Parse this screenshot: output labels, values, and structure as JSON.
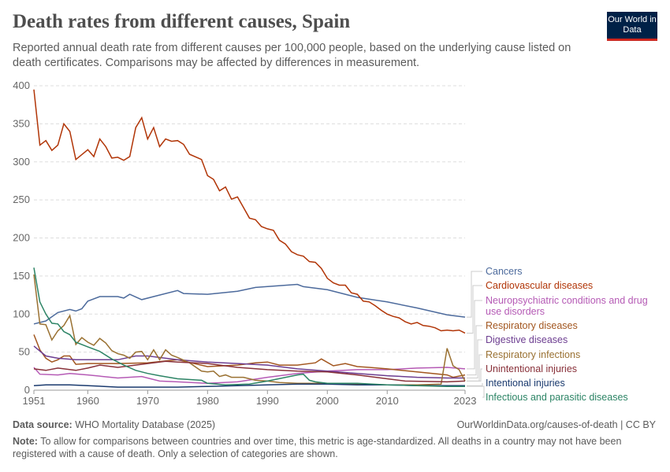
{
  "header": {
    "title": "Death rates from different causes, Spain",
    "subtitle": "Reported annual death rate from different causes per 100,000 people, based on the underlying cause listed on death certificates. Comparisons may be affected by differences in measurement.",
    "logo": "Our World in Data"
  },
  "footer": {
    "source_label": "Data source:",
    "source": "WHO Mortality Database (2025)",
    "url": "OurWorldinData.org/causes-of-death | CC BY",
    "note_label": "Note:",
    "note": "To allow for comparisons between countries and over time, this metric is age-standardized. All deaths in a country may not have been registered with a cause of death. Only a selection of categories are shown."
  },
  "chart_data": {
    "type": "line",
    "title": "",
    "xlabel": "",
    "ylabel": "",
    "xlim": [
      1951,
      2023
    ],
    "ylim": [
      0,
      400
    ],
    "y_ticks": [
      0,
      50,
      100,
      150,
      200,
      250,
      300,
      350,
      400
    ],
    "x_ticks": [
      1951,
      1960,
      1970,
      1980,
      1990,
      2000,
      2010,
      2023
    ],
    "grid": "horizontal dashed",
    "legend": "right, line-end labels",
    "series": [
      {
        "name": "Cancers",
        "color": "#4c6a9c",
        "x": [
          1951,
          1953,
          1955,
          1957,
          1958,
          1959,
          1960,
          1962,
          1965,
          1966,
          1967,
          1969,
          1971,
          1975,
          1976,
          1980,
          1985,
          1988,
          1995,
          1996,
          2000,
          2005,
          2010,
          2015,
          2020,
          2023
        ],
        "y": [
          87,
          91,
          102,
          106,
          104,
          107,
          117,
          123,
          123,
          121,
          126,
          119,
          123,
          131,
          127,
          126,
          130,
          135,
          139,
          136,
          132,
          122,
          116,
          108,
          99,
          96
        ]
      },
      {
        "name": "Cardiovascular diseases",
        "color": "#b13507",
        "x": [
          1951,
          1952,
          1953,
          1954,
          1955,
          1956,
          1957,
          1958,
          1960,
          1961,
          1962,
          1963,
          1964,
          1965,
          1966,
          1967,
          1968,
          1969,
          1970,
          1971,
          1972,
          1973,
          1974,
          1975,
          1976,
          1977,
          1979,
          1980,
          1981,
          1982,
          1983,
          1984,
          1985,
          1986,
          1987,
          1988,
          1989,
          1990,
          1991,
          1992,
          1993,
          1994,
          1995,
          1996,
          1997,
          1998,
          1999,
          2000,
          2001,
          2002,
          2003,
          2004,
          2005,
          2006,
          2007,
          2008,
          2009,
          2010,
          2011,
          2012,
          2013,
          2014,
          2015,
          2016,
          2017,
          2018,
          2019,
          2020,
          2021,
          2022,
          2023
        ],
        "y": [
          395,
          322,
          328,
          315,
          322,
          350,
          340,
          303,
          316,
          307,
          330,
          320,
          305,
          306,
          302,
          307,
          345,
          358,
          330,
          345,
          320,
          330,
          327,
          328,
          323,
          310,
          303,
          282,
          277,
          262,
          267,
          251,
          254,
          240,
          226,
          224,
          215,
          212,
          210,
          197,
          192,
          182,
          178,
          176,
          169,
          168,
          160,
          147,
          141,
          138,
          138,
          128,
          126,
          117,
          116,
          111,
          105,
          100,
          97,
          95,
          90,
          87,
          89,
          85,
          84,
          82,
          78,
          79,
          78,
          79,
          75
        ]
      },
      {
        "name": "Neuropsychiatric conditions and drug use disorders",
        "color": "#b55ab5",
        "x": [
          1951,
          1952,
          1955,
          1957,
          1960,
          1965,
          1969,
          1972,
          1975,
          1980,
          1985,
          1990,
          1995,
          2000,
          2005,
          2010,
          2015,
          2020,
          2023
        ],
        "y": [
          30,
          21,
          20,
          22,
          20,
          16,
          18,
          12,
          11,
          9,
          11,
          17,
          22,
          25,
          27,
          27,
          29,
          30,
          28
        ]
      },
      {
        "name": "Respiratory diseases",
        "color": "#a2561f",
        "x": [
          1951,
          1952,
          1953,
          1954,
          1955,
          1956,
          1957,
          1958,
          1960,
          1965,
          1970,
          1975,
          1980,
          1985,
          1988,
          1990,
          1992,
          1995,
          1998,
          1999,
          2001,
          2003,
          2005,
          2007,
          2010,
          2015,
          2020,
          2021,
          2023
        ],
        "y": [
          73,
          53,
          42,
          37,
          40,
          45,
          45,
          34,
          35,
          35,
          36,
          40,
          31,
          33,
          36,
          37,
          33,
          33,
          36,
          41,
          32,
          35,
          31,
          30,
          28,
          24,
          20,
          17,
          20
        ]
      },
      {
        "name": "Digestive diseases",
        "color": "#6d3e91",
        "x": [
          1951,
          1953,
          1955,
          1958,
          1960,
          1965,
          1968,
          1970,
          1975,
          1980,
          1985,
          1990,
          1995,
          2000,
          2005,
          2010,
          2015,
          2020,
          2023
        ],
        "y": [
          58,
          45,
          42,
          40,
          40,
          40,
          45,
          45,
          40,
          37,
          35,
          33,
          28,
          25,
          22,
          19,
          17,
          16,
          16
        ]
      },
      {
        "name": "Respiratory infections",
        "color": "#9a7132",
        "x": [
          1951,
          1952,
          1953,
          1954,
          1955,
          1956,
          1957,
          1958,
          1959,
          1960,
          1961,
          1962,
          1963,
          1964,
          1965,
          1966,
          1967,
          1968,
          1969,
          1970,
          1971,
          1972,
          1973,
          1974,
          1975,
          1977,
          1979,
          1980,
          1981,
          1982,
          1983,
          1984,
          1986,
          1988,
          1990,
          1992,
          1995,
          2000,
          2005,
          2010,
          2015,
          2019,
          2020,
          2021,
          2022,
          2023
        ],
        "y": [
          152,
          87,
          86,
          66,
          78,
          85,
          98,
          60,
          69,
          63,
          59,
          68,
          62,
          52,
          48,
          46,
          42,
          50,
          51,
          40,
          53,
          40,
          53,
          46,
          43,
          36,
          25,
          24,
          25,
          18,
          20,
          17,
          17,
          13,
          12,
          10,
          9,
          9,
          8,
          7,
          7,
          8,
          55,
          32,
          27,
          12
        ]
      },
      {
        "name": "Unintentional injuries",
        "color": "#883039",
        "x": [
          1951,
          1953,
          1955,
          1958,
          1960,
          1962,
          1965,
          1970,
          1973,
          1975,
          1980,
          1985,
          1990,
          1995,
          2000,
          2005,
          2010,
          2013,
          2020,
          2023
        ],
        "y": [
          28,
          26,
          29,
          26,
          29,
          33,
          30,
          35,
          38,
          37,
          35,
          30,
          27,
          25,
          24,
          20,
          15,
          12,
          11,
          12
        ]
      },
      {
        "name": "Intentional injuries",
        "color": "#1a3a6e",
        "x": [
          1951,
          1953,
          1957,
          1960,
          1965,
          1970,
          1975,
          1980,
          1985,
          1990,
          1995,
          2000,
          2005,
          2010,
          2015,
          2023
        ],
        "y": [
          6,
          7,
          7,
          6,
          4,
          4,
          4,
          5,
          6,
          7,
          8,
          8,
          7,
          7,
          6,
          6
        ]
      },
      {
        "name": "Infectious and parasitic diseases",
        "color": "#2c8465",
        "x": [
          1951,
          1952,
          1953,
          1954,
          1955,
          1956,
          1957,
          1958,
          1960,
          1962,
          1964,
          1966,
          1968,
          1970,
          1972,
          1975,
          1979,
          1980,
          1983,
          1987,
          1990,
          1995,
          1996,
          1997,
          1998,
          2000,
          2005,
          2010,
          2015,
          2020,
          2023
        ],
        "y": [
          161,
          116,
          100,
          88,
          87,
          77,
          73,
          63,
          57,
          51,
          41,
          33,
          26,
          22,
          19,
          15,
          13,
          9,
          7,
          8,
          12,
          20,
          21,
          13,
          11,
          9,
          9,
          7,
          6,
          5,
          5
        ]
      }
    ]
  }
}
